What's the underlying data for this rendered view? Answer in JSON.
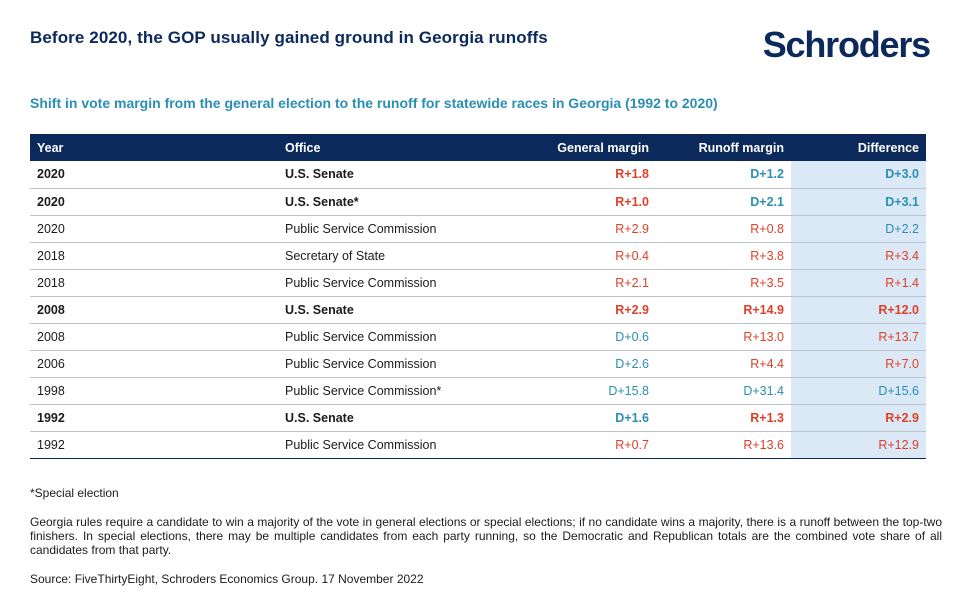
{
  "header": {
    "title": "Before 2020,  the GOP usually gained ground in Georgia runoffs",
    "logo_text": "Schroders",
    "subtitle": "Shift in vote margin from the general election to the runoff for statewide races in Georgia (1992 to 2020)"
  },
  "table": {
    "columns": [
      "Year",
      "Office",
      "General margin",
      "Runoff margin",
      "Difference"
    ],
    "rows": [
      {
        "year": "2020",
        "office": "U.S. Senate",
        "general": "R+1.8",
        "runoff": "D+1.2",
        "difference": "D+3.0",
        "bold": true
      },
      {
        "year": "2020",
        "office": "U.S. Senate*",
        "general": "R+1.0",
        "runoff": "D+2.1",
        "difference": "D+3.1",
        "bold": true
      },
      {
        "year": "2020",
        "office": "Public Service Commission",
        "general": "R+2.9",
        "runoff": "R+0.8",
        "difference": "D+2.2",
        "bold": false
      },
      {
        "year": "2018",
        "office": "Secretary  of State",
        "general": "R+0.4",
        "runoff": "R+3.8",
        "difference": "R+3.4",
        "bold": false
      },
      {
        "year": "2018",
        "office": "Public Service Commission",
        "general": "R+2.1",
        "runoff": "R+3.5",
        "difference": "R+1.4",
        "bold": false
      },
      {
        "year": "2008",
        "office": "U.S. Senate",
        "general": "R+2.9",
        "runoff": "R+14.9",
        "difference": "R+12.0",
        "bold": true
      },
      {
        "year": "2008",
        "office": "Public Service Commission",
        "general": "D+0.6",
        "runoff": "R+13.0",
        "difference": "R+13.7",
        "bold": false
      },
      {
        "year": "2006",
        "office": "Public Service Commission",
        "general": "D+2.6",
        "runoff": "R+4.4",
        "difference": "R+7.0",
        "bold": false
      },
      {
        "year": "1998",
        "office": "Public Service Commission*",
        "general": "D+15.8",
        "runoff": "D+31.4",
        "difference": "D+15.6",
        "bold": false
      },
      {
        "year": "1992",
        "office": "U.S. Senate",
        "general": "D+1.6",
        "runoff": "R+1.3",
        "difference": "R+2.9",
        "bold": true
      },
      {
        "year": "1992",
        "office": "Public Service Commission",
        "general": "R+0.7",
        "runoff": "R+13.6",
        "difference": "R+12.9",
        "bold": false
      }
    ]
  },
  "footnotes": {
    "special": "*Special  election",
    "rules": "Georgia rules require a candidate to win a majority of the vote in general elections or special elections; if no candidate wins a majority, there is a runoff between the top-two finishers. In special elections, there may be multiple candidates from each party running, so the Democratic and Republican  totals are the combined vote share of all candidates  from that party.",
    "source": "Source:  FiveThirtyEight,  Schroders Economics Group. 17 November  2022"
  },
  "colors": {
    "navy": "#0b2a5b",
    "teal": "#2a8fb3",
    "republican": "#e0402a",
    "democrat": "#2a8fb3",
    "difference_bg": "#dbe8f6"
  }
}
